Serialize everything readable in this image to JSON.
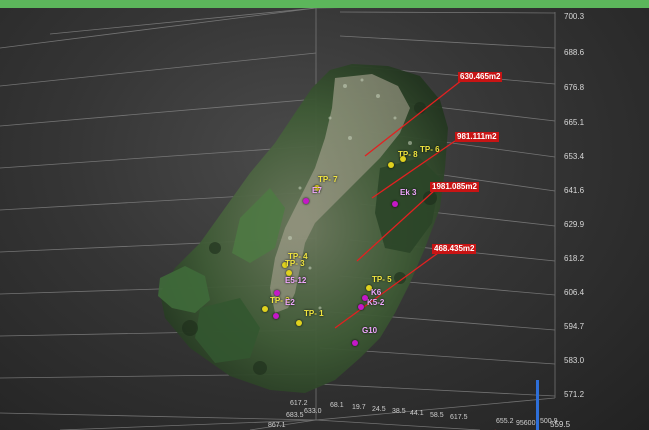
{
  "header": {
    "accent_color": "#5cb65b"
  },
  "colors": {
    "area_label_bg": "#c81414",
    "area_line": "#e32020",
    "tp_marker": "#e0d21e",
    "ks_marker": "#c418c8",
    "z_axis": "#2e6fd8",
    "x_axis": "#d8262a"
  },
  "z_axis_ticks": [
    "700.3",
    "688.6",
    "676.8",
    "665.1",
    "653.4",
    "641.6",
    "629.9",
    "618.2",
    "606.4",
    "594.7",
    "583.0",
    "571.2",
    "559.5"
  ],
  "x_axis_ticks": [
    "617.2",
    "633.0",
    "683.5",
    "867.1",
    "68.1",
    "19.7",
    "24.5",
    "38.5",
    "44.1",
    "58.5",
    "617.5",
    "655.2",
    "95600",
    "500.9"
  ],
  "area_labels": [
    "630.465m2",
    "981.111m2",
    "1981.085m2",
    "468.435m2"
  ],
  "tp_labels": [
    "TP- 7",
    "TP- 6",
    "TP- 8",
    "TP- 4",
    "TP- 3",
    "TP- 5",
    "TP- 2",
    "TP- 1"
  ],
  "ks_labels": [
    "E7",
    "Ek 3",
    "E5-12",
    "E2",
    "K5-2",
    "K6",
    "G10"
  ]
}
